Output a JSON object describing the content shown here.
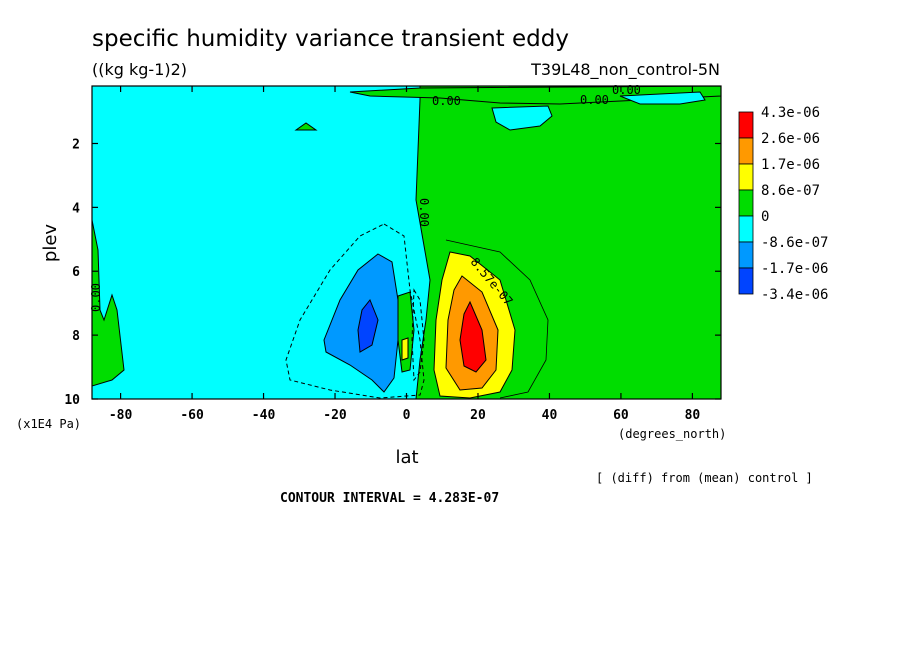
{
  "chart_data": {
    "type": "heatmap",
    "title": "specific humidity variance transient eddy",
    "units": "((kg kg-1)2)",
    "run_label": "T39L48_non_control-5N",
    "xlabel": "lat",
    "ylabel": "plev",
    "x_units": "(degrees_north)",
    "y_units": "(x1E4 Pa)",
    "xlim": [
      -88,
      88
    ],
    "ylim": [
      10,
      0.2
    ],
    "x_ticks": [
      -80,
      -60,
      -40,
      -20,
      0,
      20,
      40,
      60,
      80
    ],
    "y_ticks": [
      2,
      4,
      6,
      8,
      10
    ],
    "x_tick_labels": [
      "-80",
      "-60",
      "-40",
      "-20",
      "0",
      "20",
      "40",
      "60",
      "80"
    ],
    "y_tick_labels": [
      "2",
      "4",
      "6",
      "8",
      "10"
    ],
    "diff_note": "[ (diff) from (mean) control ]",
    "contour_interval_label": "CONTOUR INTERVAL = 4.283E-07",
    "contour_labels": [
      "0.00",
      "0.00",
      "0.00",
      "0.00",
      "0.00",
      "8.57e-07"
    ],
    "colorbar": {
      "labels": [
        "4.3e-06",
        "2.6e-06",
        "1.7e-06",
        "8.6e-07",
        "0",
        "-8.6e-07",
        "-1.7e-06",
        "-3.4e-06"
      ],
      "colors": [
        "#ff0000",
        "#ff9900",
        "#ffff00",
        "#00dd00",
        "#00ffff",
        "#0099ff",
        "#0044ff"
      ]
    },
    "features": [
      {
        "kind": "max",
        "lat": 18,
        "plev": 8.2,
        "value": 4.3e-06
      },
      {
        "kind": "min",
        "lat": -12,
        "plev": 7.8,
        "value": -3.4e-06
      },
      {
        "kind": "positive_lobe",
        "lat": 0,
        "plev": 8.0
      },
      {
        "kind": "negative_background",
        "region": "southern hemisphere"
      },
      {
        "kind": "positive_background",
        "region": "northern hemisphere"
      }
    ]
  }
}
